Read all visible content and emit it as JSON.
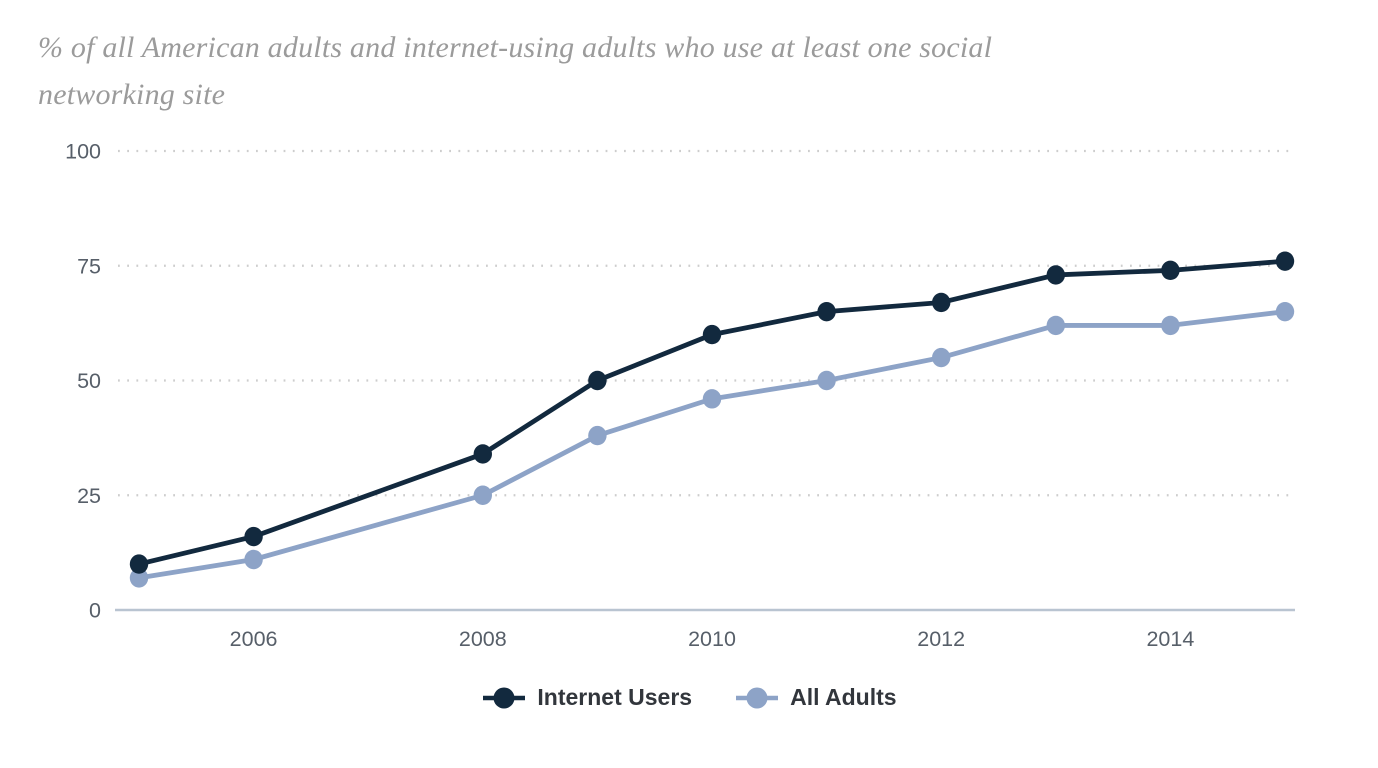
{
  "title": {
    "line1": "% of all American adults and internet-using adults who use at least one social",
    "line2": "networking site"
  },
  "chart_data": {
    "type": "line",
    "title": "% of all American adults and internet-using adults who use at least one social networking site",
    "x": [
      2005,
      2006,
      2008,
      2009,
      2010,
      2011,
      2012,
      2013,
      2014,
      2015
    ],
    "series": [
      {
        "name": "Internet Users",
        "color": "#12293e",
        "values": [
          10,
          16,
          34,
          50,
          60,
          65,
          67,
          73,
          74,
          76
        ]
      },
      {
        "name": "All Adults",
        "color": "#8da3c7",
        "values": [
          7,
          11,
          25,
          38,
          46,
          50,
          55,
          62,
          62,
          65
        ]
      }
    ],
    "xlabel": "",
    "ylabel": "",
    "ylim": [
      0,
      100
    ],
    "yticks": [
      0,
      25,
      50,
      75,
      100
    ],
    "x_tick_labels": [
      "2006",
      "2008",
      "2010",
      "2012",
      "2014"
    ],
    "grid": "horizontal-dotted",
    "legend_position": "bottom-center",
    "axis_line_color": "#b9c4d1",
    "gridline_color": "#cdcdcd",
    "tick_label_color": "#575f69",
    "title_color": "#9b9b9b",
    "legend_text_color": "#32363c"
  }
}
